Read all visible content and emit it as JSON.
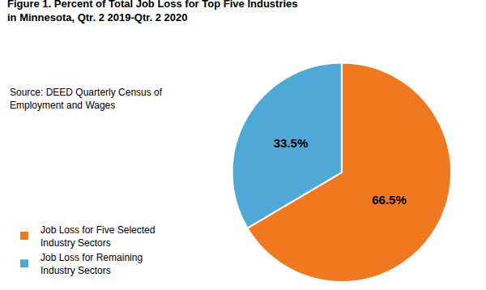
{
  "chart_data": {
    "type": "pie",
    "title": "Figure 1. Percent of Total Job Loss for Top Five Industries\nin Minnesota, Qtr. 2 2019-Qtr. 2 2020",
    "annotations": [
      "Source: DEED Quarterly Census of\nEmployment and Wages"
    ],
    "categories": [
      "Job Loss for Five Selected\nIndustry Sectors",
      "Job Loss for Remaining\nIndustry Sectors"
    ],
    "values": [
      66.5,
      33.5
    ],
    "value_labels": [
      "66.5%",
      "33.5%"
    ],
    "data_labels": true,
    "colors": [
      "#F07820",
      "#4FA8D5"
    ],
    "legend": "lower left"
  }
}
